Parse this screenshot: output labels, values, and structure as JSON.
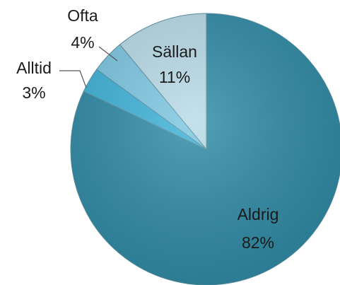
{
  "chart_data": {
    "type": "pie",
    "categories": [
      "Aldrig",
      "Alltid",
      "Ofta",
      "Sällan"
    ],
    "values": [
      82,
      3,
      4,
      11
    ],
    "value_labels": [
      "82%",
      "3%",
      "4%",
      "11%"
    ],
    "colors": [
      "#2f8ba6",
      "#3db2d9",
      "#7cc7e2",
      "#b8dbe8"
    ]
  }
}
